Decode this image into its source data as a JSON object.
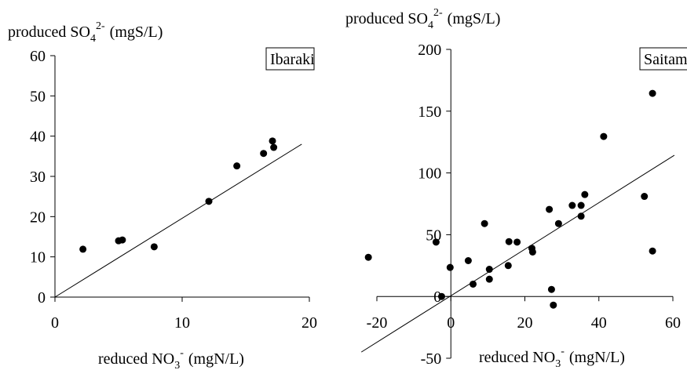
{
  "chart_data": [
    {
      "type": "scatter",
      "y_label": {
        "text": "produced SO",
        "sub": "4",
        "sup": "2-",
        "unit": "(mgS/L)"
      },
      "x_label": {
        "text": "reduced NO",
        "sub": "3",
        "sup": "-",
        "unit": "(mgN/L)"
      },
      "legend_label": "Ibaraki",
      "color": "#000000",
      "x": [
        2.2,
        5.0,
        5.3,
        7.8,
        12.1,
        14.3,
        16.4,
        17.1,
        17.2
      ],
      "values": [
        11.9,
        14.0,
        14.2,
        12.5,
        23.8,
        32.6,
        35.7,
        38.8,
        37.2
      ],
      "fit_line": {
        "x": [
          0,
          19.4
        ],
        "y": [
          0,
          38
        ]
      },
      "xlim": [
        0,
        20
      ],
      "xticks": [
        0,
        10,
        20
      ],
      "ylim": [
        0,
        60
      ],
      "yticks": [
        0,
        10,
        20,
        30,
        40,
        50,
        60
      ]
    },
    {
      "type": "scatter",
      "y_label": {
        "text": "produced SO",
        "sub": "4",
        "sup": "2-",
        "unit": "(mgS/L)"
      },
      "x_label": {
        "text": "reduced NO",
        "sub": "3",
        "sup": "-",
        "unit": "(mgN/L)"
      },
      "legend_label": "Saitama",
      "color": "#000000",
      "x": [
        -22.3,
        -4,
        -2.5,
        -0.2,
        4.7,
        6,
        9.1,
        10.4,
        10.4,
        15.7,
        15.5,
        17.9,
        21.9,
        22.1,
        26.6,
        27.2,
        27.7,
        29.1,
        32.8,
        35.2,
        35.2,
        36.2,
        41.3,
        52.3,
        54.5,
        54.5
      ],
      "values": [
        31.7,
        44,
        0,
        23.5,
        29,
        10,
        59,
        22,
        14,
        44.4,
        25,
        44,
        39,
        36,
        70.5,
        5.7,
        -7,
        59,
        73.7,
        73.7,
        65,
        82.5,
        129.5,
        81,
        164.4,
        36.8
      ],
      "fit_line": {
        "x": [
          -24.2,
          60.4
        ],
        "y": [
          -45,
          114.3
        ]
      },
      "xlim": [
        -20,
        60
      ],
      "xticks": [
        -20,
        0,
        20,
        40,
        60
      ],
      "ylim": [
        -50,
        200
      ],
      "yticks": [
        -50,
        0,
        50,
        100,
        150,
        200
      ]
    }
  ]
}
